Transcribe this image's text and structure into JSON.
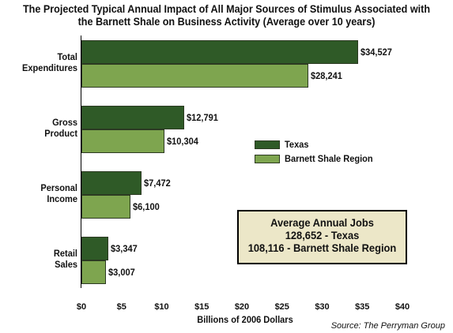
{
  "chart_data": {
    "type": "bar",
    "orientation": "horizontal",
    "title": "The Projected Typical Annual Impact of All Major Sources of Stimulus Associated with the Barnett Shale on Business Activity (Average over 10 years)",
    "title_lines": [
      "The Projected Typical Annual Impact of All Major Sources of Stimulus Associated with",
      "the Barnett Shale on Business Activity (Average over 10 years)"
    ],
    "categories": [
      {
        "lines": [
          "Total",
          "Expenditures"
        ]
      },
      {
        "lines": [
          "Gross",
          "Product"
        ]
      },
      {
        "lines": [
          "Personal",
          "Income"
        ]
      },
      {
        "lines": [
          "Retail",
          "Sales"
        ]
      }
    ],
    "series": [
      {
        "name": "Texas",
        "values": [
          34527,
          12791,
          7472,
          3347
        ],
        "labels": [
          "$34,527",
          "$12,791",
          "$7,472",
          "$3,347"
        ],
        "color": "#2f5a27"
      },
      {
        "name": "Barnett Shale Region",
        "values": [
          28241,
          10304,
          6100,
          3007
        ],
        "labels": [
          "$28,241",
          "$10,304",
          "$6,100",
          "$3,007"
        ],
        "color": "#7ea54f"
      }
    ],
    "xlabel": "Billions of 2006 Dollars",
    "ylabel": "",
    "xlim": [
      0,
      40
    ],
    "value_units_per_axis_unit": 1000,
    "xticks": [
      0,
      5,
      10,
      15,
      20,
      25,
      30,
      35,
      40
    ],
    "xtick_labels": [
      "$0",
      "$5",
      "$10",
      "$15",
      "$20",
      "$25",
      "$30",
      "$35",
      "$40"
    ],
    "grid": false,
    "legend_position": "right-middle"
  },
  "jobs_box": {
    "title": "Average Annual Jobs",
    "line1": "128,652 - Texas",
    "line2": "108,116 - Barnett Shale Region"
  },
  "source": "Source: The Perryman Group"
}
